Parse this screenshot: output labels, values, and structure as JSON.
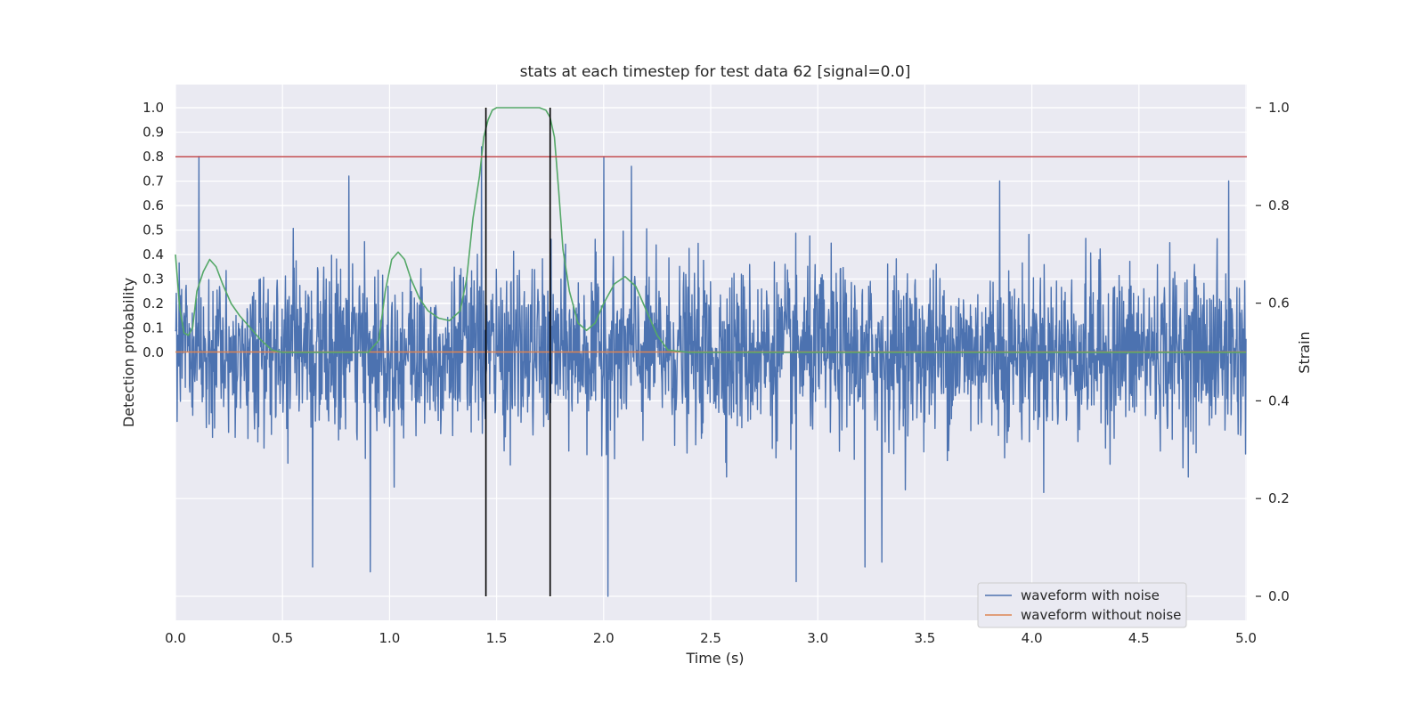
{
  "chart_data": {
    "type": "line",
    "title": "stats at each timestep for test data 62 [signal=0.0]",
    "xlabel": "Time (s)",
    "ylabel_left": "Detection probability",
    "ylabel_right": "Strain",
    "xlim": [
      0.0,
      5.0
    ],
    "xticks": [
      "0.0",
      "0.5",
      "1.0",
      "1.5",
      "2.0",
      "2.5",
      "3.0",
      "3.5",
      "4.0",
      "4.5",
      "5.0"
    ],
    "ylim_left": [
      0.0,
      1.0
    ],
    "yticks_left": [
      "0.0",
      "0.1",
      "0.2",
      "0.3",
      "0.4",
      "0.5",
      "0.6",
      "0.7",
      "0.8",
      "0.9",
      "1.0"
    ],
    "ylim_right": [
      0.0,
      1.0
    ],
    "yticks_right": [
      "0.0",
      "0.2",
      "0.4",
      "0.6",
      "0.8",
      "1.0"
    ],
    "grid": true,
    "legend_position": "lower-right",
    "series": [
      {
        "name": "waveform with noise",
        "axis": "right",
        "color": "#4c72b0",
        "mean": 0.5,
        "envelope_typical": [
          0.33,
          0.67
        ],
        "envelope_extreme": [
          0.0,
          1.0
        ],
        "notable_peaks": [
          {
            "x": 0.11,
            "y": 0.9
          },
          {
            "x": 0.81,
            "y": 0.86
          },
          {
            "x": 1.43,
            "y": 0.92
          },
          {
            "x": 2.0,
            "y": 0.9
          },
          {
            "x": 2.13,
            "y": 0.88
          },
          {
            "x": 3.85,
            "y": 0.85
          },
          {
            "x": 4.92,
            "y": 0.85
          }
        ],
        "notable_troughs": [
          {
            "x": 0.64,
            "y": 0.06
          },
          {
            "x": 0.91,
            "y": 0.05
          },
          {
            "x": 2.02,
            "y": 0.0
          },
          {
            "x": 2.9,
            "y": 0.03
          },
          {
            "x": 3.22,
            "y": 0.06
          },
          {
            "x": 3.3,
            "y": 0.07
          }
        ]
      },
      {
        "name": "waveform without noise",
        "axis": "right",
        "color": "#dd8452",
        "x": [
          0.0,
          5.0
        ],
        "y": [
          0.5,
          0.5
        ]
      },
      {
        "name": "",
        "axis": "left",
        "color": "#55a868",
        "x": [
          0.0,
          0.02,
          0.04,
          0.06,
          0.08,
          0.1,
          0.13,
          0.16,
          0.19,
          0.22,
          0.26,
          0.3,
          0.35,
          0.4,
          0.45,
          0.5,
          0.6,
          0.7,
          0.8,
          0.9,
          0.95,
          0.98,
          1.01,
          1.04,
          1.07,
          1.1,
          1.14,
          1.18,
          1.23,
          1.28,
          1.33,
          1.36,
          1.39,
          1.42,
          1.44,
          1.46,
          1.48,
          1.5,
          1.55,
          1.6,
          1.65,
          1.7,
          1.73,
          1.75,
          1.77,
          1.79,
          1.81,
          1.84,
          1.88,
          1.92,
          1.96,
          2.0,
          2.05,
          2.1,
          2.15,
          2.2,
          2.25,
          2.3,
          2.4,
          2.6,
          3.0,
          3.5,
          4.0,
          4.5,
          5.0
        ],
        "y": [
          0.4,
          0.18,
          0.08,
          0.07,
          0.1,
          0.25,
          0.33,
          0.38,
          0.35,
          0.28,
          0.2,
          0.15,
          0.1,
          0.05,
          0.01,
          0.0,
          0.0,
          0.0,
          0.0,
          0.0,
          0.05,
          0.25,
          0.38,
          0.41,
          0.38,
          0.3,
          0.22,
          0.17,
          0.14,
          0.13,
          0.17,
          0.3,
          0.55,
          0.72,
          0.88,
          0.95,
          0.99,
          1.0,
          1.0,
          1.0,
          1.0,
          1.0,
          0.99,
          0.96,
          0.88,
          0.66,
          0.42,
          0.25,
          0.12,
          0.09,
          0.12,
          0.2,
          0.28,
          0.31,
          0.27,
          0.17,
          0.07,
          0.01,
          0.0,
          0.0,
          0.0,
          0.0,
          0.0,
          0.0,
          0.0
        ]
      },
      {
        "name": "",
        "axis": "left",
        "type": "hline",
        "color": "#c44e52",
        "y": 0.8
      },
      {
        "name": "",
        "axis": "left",
        "type": "vlines",
        "color": "#000000",
        "x": [
          1.45,
          1.75
        ]
      }
    ]
  }
}
